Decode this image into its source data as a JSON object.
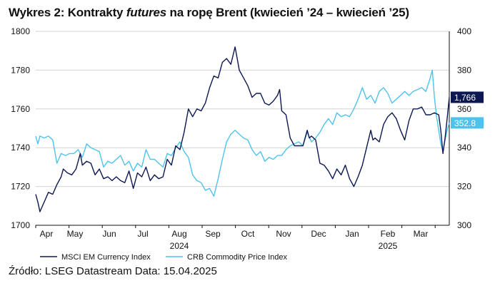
{
  "title": {
    "prefix": "Wykres 2: Kontrakty ",
    "italic": "futures",
    "suffix": " na ropę Brent (kwiecień ’24 – kwiecień ’25)"
  },
  "source": "Źródło: LSEG Datastream Data: 15.04.2025",
  "colors": {
    "msci": "#0d1752",
    "crb": "#4dc3ec",
    "axis": "#111111"
  },
  "chart_data": {
    "type": "line",
    "x_tick_labels": [
      "Apr",
      "May",
      "Jun",
      "Jul",
      "Aug",
      "Sep",
      "Oct",
      "Nov",
      "Dec",
      "Jan",
      "Feb",
      "Mar"
    ],
    "x_year_labels": [
      {
        "label": "2024",
        "under": "Aug"
      },
      {
        "label": "2025",
        "under": "Feb"
      }
    ],
    "y_left": {
      "min": 1700,
      "max": 1800,
      "ticks": [
        1700,
        1720,
        1740,
        1760,
        1780,
        1800
      ]
    },
    "y_right": {
      "min": 300,
      "max": 400,
      "ticks": [
        300,
        320,
        340,
        360,
        380,
        400
      ]
    },
    "grid": "horizontal",
    "legend_position": "bottom-left",
    "last_value_badges": [
      {
        "series": "MSCI EM Currency Index",
        "label": "1,766"
      },
      {
        "series": "CRB Commodity Price Index",
        "label": "352.8"
      }
    ],
    "series": [
      {
        "name": "MSCI EM Currency Index",
        "axis": "left",
        "points": [
          [
            0,
            1716
          ],
          [
            1,
            1712
          ],
          [
            2,
            1707
          ],
          [
            4,
            1712
          ],
          [
            6,
            1717
          ],
          [
            8,
            1716
          ],
          [
            10,
            1721
          ],
          [
            12,
            1725
          ],
          [
            13,
            1729
          ],
          [
            15,
            1727
          ],
          [
            17,
            1726
          ],
          [
            19,
            1729
          ],
          [
            21,
            1737
          ],
          [
            22,
            1731
          ],
          [
            24,
            1733
          ],
          [
            26,
            1732
          ],
          [
            28,
            1726
          ],
          [
            30,
            1729
          ],
          [
            32,
            1724
          ],
          [
            34,
            1725
          ],
          [
            36,
            1723
          ],
          [
            38,
            1725
          ],
          [
            40,
            1723
          ],
          [
            42,
            1722
          ],
          [
            44,
            1728
          ],
          [
            46,
            1719
          ],
          [
            48,
            1727
          ],
          [
            50,
            1725
          ],
          [
            52,
            1730
          ],
          [
            54,
            1723
          ],
          [
            56,
            1726
          ],
          [
            58,
            1724
          ],
          [
            60,
            1725
          ],
          [
            62,
            1734
          ],
          [
            64,
            1731
          ],
          [
            66,
            1741
          ],
          [
            68,
            1739
          ],
          [
            70,
            1748
          ],
          [
            72,
            1760
          ],
          [
            74,
            1756
          ],
          [
            76,
            1760
          ],
          [
            78,
            1759
          ],
          [
            80,
            1763
          ],
          [
            82,
            1771
          ],
          [
            84,
            1777
          ],
          [
            86,
            1776
          ],
          [
            88,
            1784
          ],
          [
            90,
            1786
          ],
          [
            92,
            1783
          ],
          [
            94,
            1792
          ],
          [
            95,
            1786
          ],
          [
            96,
            1780
          ],
          [
            98,
            1776
          ],
          [
            100,
            1772
          ],
          [
            102,
            1766
          ],
          [
            104,
            1768
          ],
          [
            106,
            1768
          ],
          [
            108,
            1763
          ],
          [
            110,
            1762
          ],
          [
            112,
            1764
          ],
          [
            114,
            1767
          ],
          [
            115,
            1770
          ],
          [
            116,
            1759
          ],
          [
            118,
            1757
          ],
          [
            120,
            1745
          ],
          [
            122,
            1741
          ],
          [
            124,
            1741
          ],
          [
            126,
            1741
          ],
          [
            128,
            1749
          ],
          [
            129,
            1745
          ],
          [
            130,
            1746
          ],
          [
            132,
            1744
          ],
          [
            134,
            1732
          ],
          [
            136,
            1731
          ],
          [
            138,
            1728
          ],
          [
            140,
            1724
          ],
          [
            142,
            1729
          ],
          [
            144,
            1726
          ],
          [
            146,
            1731
          ],
          [
            148,
            1724
          ],
          [
            150,
            1720
          ],
          [
            152,
            1725
          ],
          [
            154,
            1731
          ],
          [
            156,
            1740
          ],
          [
            158,
            1749
          ],
          [
            159,
            1744
          ],
          [
            160,
            1745
          ],
          [
            162,
            1743
          ],
          [
            164,
            1752
          ],
          [
            166,
            1756
          ],
          [
            168,
            1758
          ],
          [
            170,
            1755
          ],
          [
            172,
            1749
          ],
          [
            174,
            1744
          ],
          [
            176,
            1754
          ],
          [
            178,
            1760
          ],
          [
            180,
            1760
          ],
          [
            182,
            1761
          ],
          [
            184,
            1757
          ],
          [
            186,
            1757
          ],
          [
            188,
            1758
          ],
          [
            190,
            1757
          ],
          [
            191,
            1749
          ],
          [
            192,
            1737
          ],
          [
            193,
            1745
          ],
          [
            194,
            1755
          ],
          [
            195,
            1766
          ]
        ]
      },
      {
        "name": "CRB Commodity Price Index",
        "axis": "right",
        "points": [
          [
            0,
            346
          ],
          [
            1,
            342
          ],
          [
            2,
            346
          ],
          [
            4,
            345
          ],
          [
            6,
            346
          ],
          [
            8,
            344
          ],
          [
            10,
            332
          ],
          [
            12,
            337
          ],
          [
            14,
            336
          ],
          [
            16,
            337
          ],
          [
            18,
            337
          ],
          [
            20,
            339
          ],
          [
            22,
            335
          ],
          [
            24,
            342
          ],
          [
            26,
            340
          ],
          [
            28,
            339
          ],
          [
            30,
            338
          ],
          [
            32,
            330
          ],
          [
            34,
            333
          ],
          [
            36,
            332
          ],
          [
            38,
            334
          ],
          [
            40,
            336
          ],
          [
            42,
            331
          ],
          [
            44,
            333
          ],
          [
            46,
            328
          ],
          [
            48,
            332
          ],
          [
            50,
            330
          ],
          [
            52,
            339
          ],
          [
            54,
            334
          ],
          [
            56,
            334
          ],
          [
            58,
            332
          ],
          [
            60,
            330
          ],
          [
            62,
            337
          ],
          [
            64,
            336
          ],
          [
            66,
            340
          ],
          [
            68,
            343
          ],
          [
            70,
            338
          ],
          [
            72,
            335
          ],
          [
            74,
            326
          ],
          [
            76,
            323
          ],
          [
            78,
            322
          ],
          [
            80,
            318
          ],
          [
            82,
            319
          ],
          [
            84,
            315
          ],
          [
            86,
            324
          ],
          [
            88,
            334
          ],
          [
            90,
            343
          ],
          [
            92,
            347
          ],
          [
            94,
            349
          ],
          [
            96,
            347
          ],
          [
            98,
            345
          ],
          [
            100,
            344
          ],
          [
            102,
            339
          ],
          [
            104,
            336
          ],
          [
            106,
            338
          ],
          [
            108,
            333
          ],
          [
            110,
            335
          ],
          [
            112,
            334
          ],
          [
            114,
            336
          ],
          [
            116,
            336
          ],
          [
            118,
            339
          ],
          [
            120,
            341
          ],
          [
            122,
            342
          ],
          [
            124,
            343
          ],
          [
            126,
            341
          ],
          [
            128,
            348
          ],
          [
            130,
            343
          ],
          [
            132,
            345
          ],
          [
            134,
            348
          ],
          [
            136,
            352
          ],
          [
            138,
            355
          ],
          [
            140,
            352
          ],
          [
            142,
            358
          ],
          [
            144,
            356
          ],
          [
            146,
            357
          ],
          [
            148,
            356
          ],
          [
            150,
            360
          ],
          [
            152,
            365
          ],
          [
            154,
            371
          ],
          [
            156,
            365
          ],
          [
            158,
            367
          ],
          [
            160,
            363
          ],
          [
            162,
            369
          ],
          [
            164,
            371
          ],
          [
            166,
            368
          ],
          [
            168,
            363
          ],
          [
            170,
            365
          ],
          [
            172,
            367
          ],
          [
            174,
            369
          ],
          [
            176,
            367
          ],
          [
            178,
            369
          ],
          [
            180,
            370
          ],
          [
            182,
            371
          ],
          [
            184,
            369
          ],
          [
            186,
            376
          ],
          [
            187,
            380
          ],
          [
            188,
            366
          ],
          [
            189,
            356
          ],
          [
            190,
            349
          ],
          [
            191,
            342
          ],
          [
            192,
            338
          ],
          [
            193,
            344
          ],
          [
            194,
            349
          ],
          [
            195,
            352.8
          ]
        ]
      }
    ]
  }
}
